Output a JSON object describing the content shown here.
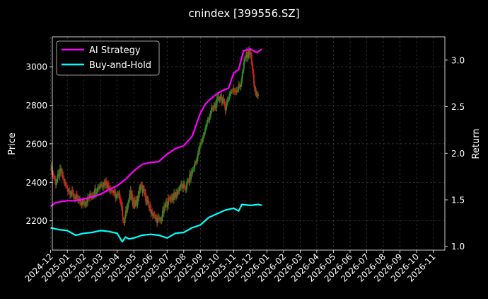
{
  "chart_data": {
    "type": "line",
    "title": "cnindex [399556.SZ]",
    "ylabel_left": "Price",
    "ylabel_right": "Return",
    "y_left_ticks": [
      2200,
      2400,
      2600,
      2800,
      3000
    ],
    "y_left_range": [
      2048,
      3155
    ],
    "y_right_ticks": [
      "1.0",
      "1.5",
      "2.0",
      "2.5",
      "3.0"
    ],
    "y_right_range": [
      0.96,
      3.25
    ],
    "x_ticks": [
      "2024-12",
      "2025-01",
      "2025-02",
      "2025-03",
      "2025-04",
      "2025-05",
      "2025-06",
      "2025-07",
      "2025-08",
      "2025-09",
      "2025-10",
      "2025-11",
      "2025-12",
      "2026-01",
      "2026-02",
      "2026-03",
      "2026-04",
      "2026-05",
      "2026-06",
      "2026-07",
      "2026-08",
      "2026-09",
      "2026-10",
      "2026-11"
    ],
    "x_range": [
      0.1,
      23.7
    ],
    "grid": true,
    "legend_position": "top-left",
    "colors": {
      "background": "#000000",
      "grid": "#3a3a3a",
      "up": "#2e8b22",
      "down": "#cc1f1f",
      "ai_strategy": "#ff00ff",
      "buy_and_hold": "#00ffff"
    },
    "series": [
      {
        "name": "AI Strategy",
        "axis": "right",
        "x": [
          0.0,
          0.3,
          0.6,
          1.0,
          1.5,
          2.0,
          2.5,
          3.0,
          3.5,
          4.0,
          4.5,
          5.0,
          5.5,
          6.0,
          6.5,
          7.0,
          7.5,
          8.0,
          8.5,
          9.0,
          9.3,
          9.6,
          10.0,
          10.3,
          10.7,
          11.0,
          11.3,
          11.6,
          12.0,
          12.4,
          12.7
        ],
        "y": [
          1.43,
          1.47,
          1.48,
          1.49,
          1.49,
          1.51,
          1.53,
          1.56,
          1.61,
          1.65,
          1.72,
          1.81,
          1.88,
          1.9,
          1.91,
          1.99,
          2.05,
          2.08,
          2.18,
          2.43,
          2.53,
          2.58,
          2.64,
          2.67,
          2.7,
          2.86,
          2.9,
          3.1,
          3.12,
          3.08,
          3.12
        ]
      },
      {
        "name": "Buy-and-Hold",
        "axis": "right",
        "x": [
          0.0,
          0.5,
          1.0,
          1.5,
          2.0,
          2.5,
          3.0,
          3.5,
          4.0,
          4.3,
          4.5,
          4.7,
          5.0,
          5.5,
          6.0,
          6.5,
          7.0,
          7.5,
          8.0,
          8.5,
          9.0,
          9.5,
          10.0,
          10.5,
          11.0,
          11.3,
          11.5,
          12.0,
          12.5,
          12.7
        ],
        "y": [
          1.2,
          1.18,
          1.17,
          1.12,
          1.14,
          1.15,
          1.17,
          1.16,
          1.14,
          1.05,
          1.1,
          1.08,
          1.09,
          1.12,
          1.13,
          1.12,
          1.09,
          1.14,
          1.15,
          1.2,
          1.23,
          1.31,
          1.35,
          1.39,
          1.41,
          1.38,
          1.45,
          1.44,
          1.45,
          1.44
        ]
      },
      {
        "name": "price",
        "axis": "left",
        "style": "candles",
        "x": [
          0.0,
          0.3,
          0.6,
          0.9,
          1.2,
          1.5,
          1.8,
          2.1,
          2.4,
          2.7,
          3.0,
          3.3,
          3.6,
          3.9,
          4.2,
          4.4,
          4.6,
          4.8,
          5.0,
          5.2,
          5.4,
          5.6,
          5.8,
          6.0,
          6.3,
          6.6,
          6.9,
          7.2,
          7.5,
          7.8,
          8.1,
          8.4,
          8.7,
          9.0,
          9.3,
          9.6,
          9.9,
          10.2,
          10.5,
          10.8,
          11.1,
          11.4,
          11.7,
          12.0,
          12.3,
          12.5
        ],
        "y": [
          2480,
          2400,
          2460,
          2380,
          2350,
          2320,
          2290,
          2300,
          2330,
          2360,
          2390,
          2400,
          2370,
          2330,
          2320,
          2180,
          2280,
          2340,
          2290,
          2300,
          2380,
          2350,
          2300,
          2260,
          2210,
          2200,
          2280,
          2320,
          2330,
          2380,
          2370,
          2430,
          2500,
          2590,
          2680,
          2760,
          2800,
          2850,
          2790,
          2870,
          2880,
          2900,
          3050,
          3080,
          2860,
          2850
        ]
      }
    ]
  }
}
